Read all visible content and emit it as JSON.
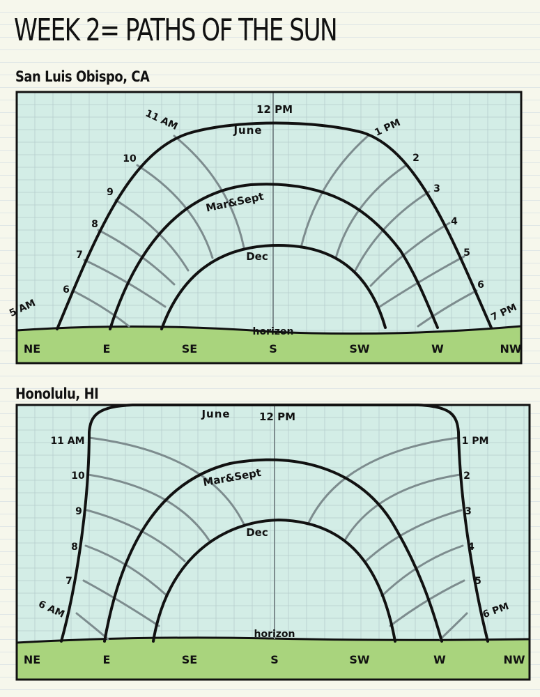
{
  "title": "WEEK 2= PATHS OF THE SUN",
  "colors": {
    "sky": "#d3ede6",
    "ground": "#a9d47d",
    "hour_line": "#7d8c8e",
    "stroke": "#111111",
    "grid": "#b6cccc"
  },
  "diagrams": [
    {
      "location": "San Luis Obispo, CA",
      "season_labels": {
        "june": "June",
        "equinox": "Mar&Sept",
        "dec": "Dec"
      },
      "horizon_label": "horizon",
      "noon_label": "12 PM",
      "directions": [
        "NE",
        "E",
        "SE",
        "S",
        "SW",
        "W",
        "NW"
      ],
      "morning_hours": [
        "5 AM",
        "6",
        "7",
        "8",
        "9",
        "10",
        "11 AM"
      ],
      "afternoon_hours": [
        "1 PM",
        "2",
        "3",
        "4",
        "5",
        "6",
        "7 PM"
      ]
    },
    {
      "location": "Honolulu, HI",
      "season_labels": {
        "june": "June",
        "equinox": "Mar&Sept",
        "dec": "Dec"
      },
      "horizon_label": "horizon",
      "noon_label": "12 PM",
      "directions": [
        "NE",
        "E",
        "SE",
        "S",
        "SW",
        "W",
        "NW"
      ],
      "morning_hours": [
        "6 AM",
        "7",
        "8",
        "9",
        "10",
        "11 AM"
      ],
      "afternoon_hours": [
        "1 PM",
        "2",
        "3",
        "4",
        "5",
        "6 PM"
      ]
    }
  ]
}
